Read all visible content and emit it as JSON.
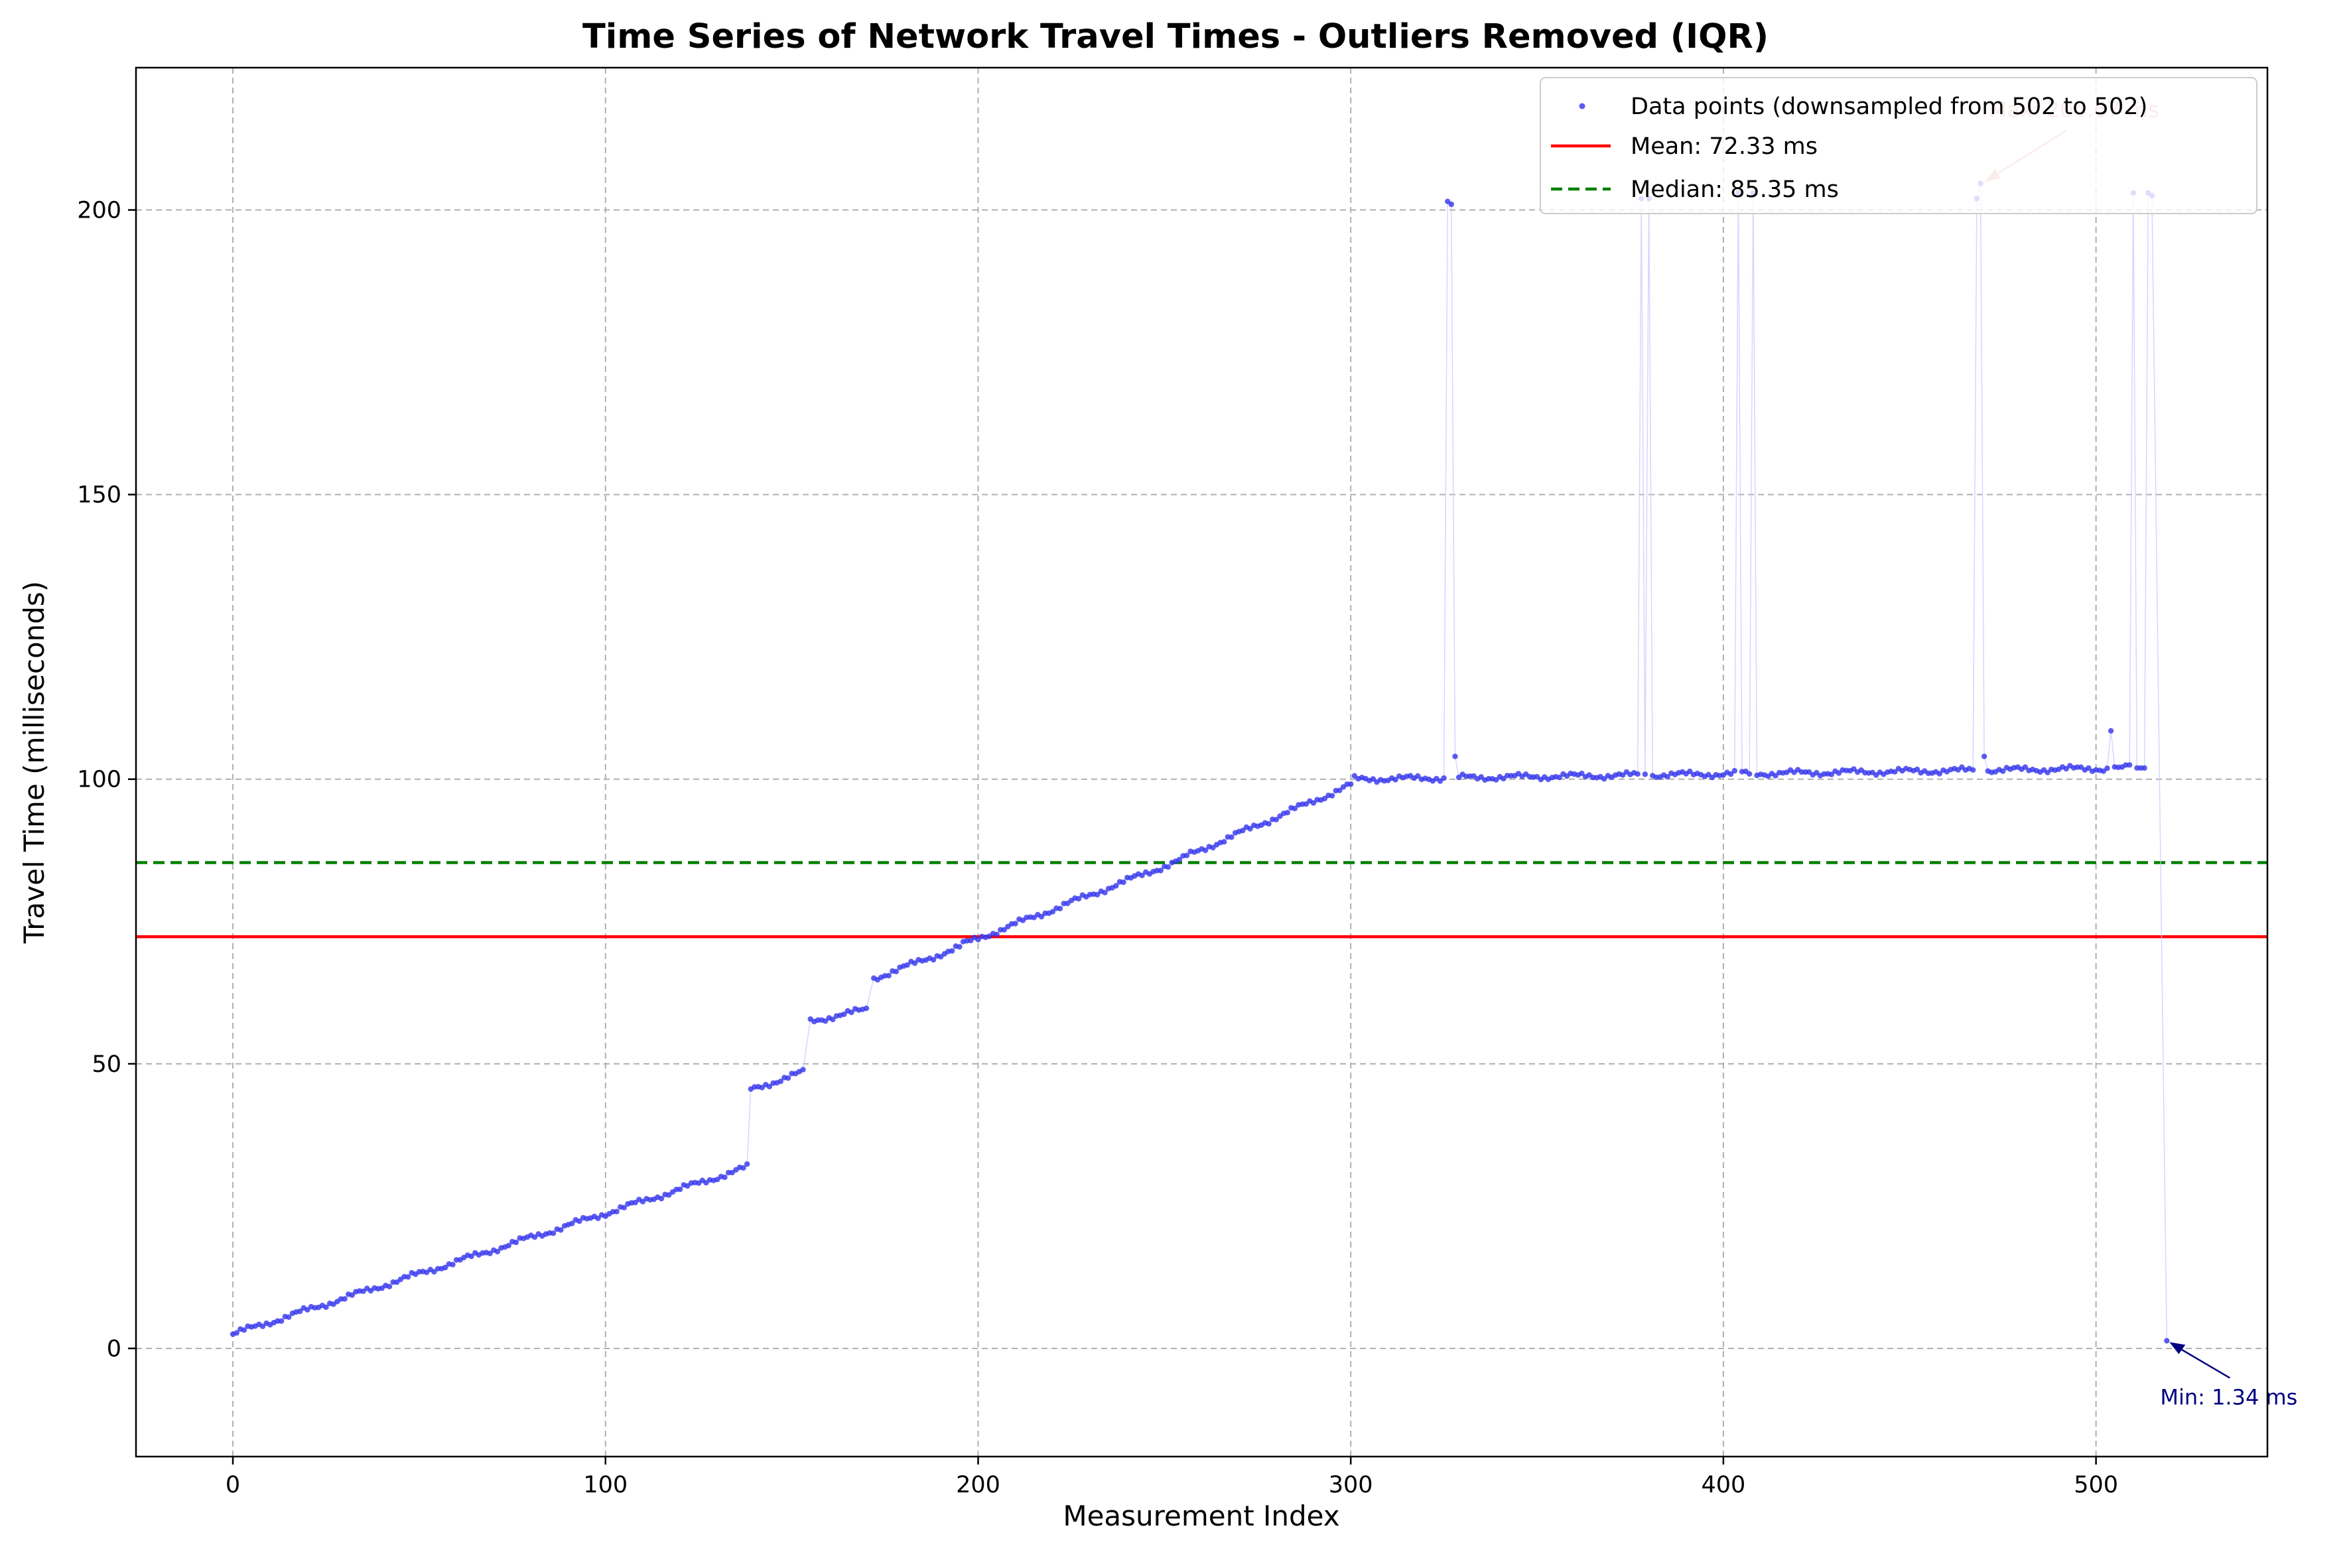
{
  "chart_data": {
    "type": "scatter",
    "title": "Time Series of Network Travel Times - Outliers Removed (IQR)",
    "xlabel": "Measurement Index",
    "ylabel": "Travel Time (milliseconds)",
    "xlim": [
      -26,
      546
    ],
    "ylim": [
      -19,
      225
    ],
    "xticks": [
      0,
      100,
      200,
      300,
      400,
      500
    ],
    "yticks": [
      0,
      50,
      100,
      150,
      200
    ],
    "grid": true,
    "legend_position": "top-right",
    "colors": {
      "points": "#3333ee",
      "connector": "#ccccff",
      "mean": "#ff0000",
      "median": "#008000",
      "max_annot": "#e8a0a0",
      "min_annot": "#000080"
    },
    "series": [
      {
        "name": "Data points (downsampled from 502 to 502)",
        "kind": "scatter",
        "segments": [
          {
            "x": [
              0,
              138
            ],
            "y": [
              2.5,
              31.8
            ]
          },
          {
            "x": [
              139,
              153
            ],
            "y": [
              45.5,
              48.5
            ]
          },
          {
            "x": [
              155,
              170
            ],
            "y": [
              57.5,
              59.5
            ]
          },
          {
            "x": [
              172,
              195
            ],
            "y": [
              65.0,
              70.5
            ]
          },
          {
            "x": [
              196,
              255
            ],
            "y": [
              71.0,
              86.0
            ]
          },
          {
            "x": [
              256,
              300
            ],
            "y": [
              86.5,
              99.0
            ]
          },
          {
            "x": [
              301,
              515
            ],
            "y": [
              100.0,
              102.0
            ]
          }
        ],
        "outliers": [
          {
            "x": 326,
            "y": 201.5
          },
          {
            "x": 327,
            "y": 201.0
          },
          {
            "x": 328,
            "y": 104.0
          },
          {
            "x": 378,
            "y": 202.0
          },
          {
            "x": 380,
            "y": 202.0
          },
          {
            "x": 404,
            "y": 203.0
          },
          {
            "x": 408,
            "y": 203.0
          },
          {
            "x": 468,
            "y": 202.0
          },
          {
            "x": 469,
            "y": 204.67
          },
          {
            "x": 470,
            "y": 104.0
          },
          {
            "x": 504,
            "y": 108.5
          },
          {
            "x": 509,
            "y": 102.5
          },
          {
            "x": 510,
            "y": 203.0
          },
          {
            "x": 514,
            "y": 203.0
          },
          {
            "x": 515,
            "y": 202.5
          },
          {
            "x": 519,
            "y": 1.34
          }
        ]
      },
      {
        "name": "Mean: 72.33 ms",
        "kind": "hline",
        "y": 72.33,
        "style": "solid"
      },
      {
        "name": "Median: 85.35 ms",
        "kind": "hline",
        "y": 85.35,
        "style": "dashed"
      }
    ],
    "annotations": [
      {
        "text": "Max: 204.67 ms",
        "x": 469,
        "y": 204.67
      },
      {
        "text": "Min: 1.34 ms",
        "x": 519,
        "y": 1.34
      }
    ]
  }
}
